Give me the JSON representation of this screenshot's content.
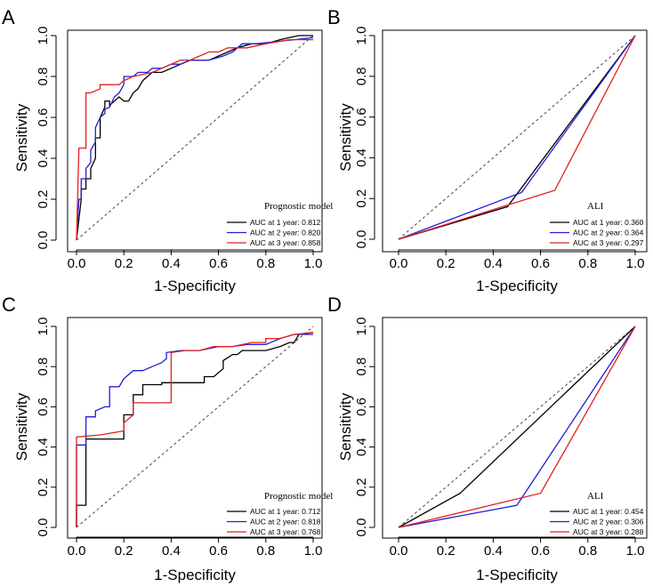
{
  "colors": {
    "black": "#000000",
    "blue": "#1f1fd6",
    "red": "#e02020"
  },
  "chart_data": [
    {
      "panel": "A",
      "type": "line",
      "xlabel": "1-Specificity",
      "ylabel": "Sensitivity",
      "xlim": [
        0,
        1
      ],
      "ylim": [
        0,
        1
      ],
      "xticks": [
        "0.0",
        "0.2",
        "0.4",
        "0.6",
        "0.8",
        "1.0"
      ],
      "yticks": [
        "0.0",
        "0.2",
        "0.4",
        "0.6",
        "0.8",
        "1.0"
      ],
      "legend_title": "Prognostic model",
      "legend_position": "bottom-right",
      "series": [
        {
          "name": "AUC at 1 year: 0.812",
          "color": "#000000",
          "x": [
            0,
            0.02,
            0.02,
            0.04,
            0.04,
            0.06,
            0.06,
            0.08,
            0.08,
            0.1,
            0.1,
            0.12,
            0.12,
            0.14,
            0.14,
            0.18,
            0.2,
            0.22,
            0.24,
            0.26,
            0.28,
            0.3,
            0.32,
            0.36,
            0.4,
            0.44,
            0.48,
            0.56,
            0.6,
            0.64,
            0.68,
            0.74,
            0.8,
            0.86,
            0.9,
            0.94,
            1.0
          ],
          "y": [
            0,
            0.2,
            0.25,
            0.25,
            0.3,
            0.3,
            0.35,
            0.4,
            0.5,
            0.5,
            0.6,
            0.65,
            0.68,
            0.68,
            0.66,
            0.7,
            0.68,
            0.68,
            0.72,
            0.74,
            0.78,
            0.8,
            0.82,
            0.82,
            0.84,
            0.86,
            0.88,
            0.88,
            0.9,
            0.92,
            0.94,
            0.96,
            0.96,
            0.98,
            0.99,
            1.0,
            1.0
          ]
        },
        {
          "name": "AUC at 2 year: 0.820",
          "color": "#1f1fd6",
          "x": [
            0,
            0.01,
            0.02,
            0.02,
            0.04,
            0.04,
            0.06,
            0.06,
            0.08,
            0.08,
            0.1,
            0.12,
            0.12,
            0.14,
            0.16,
            0.18,
            0.2,
            0.2,
            0.24,
            0.26,
            0.3,
            0.32,
            0.36,
            0.4,
            0.44,
            0.48,
            0.56,
            0.62,
            0.66,
            0.7,
            0.76,
            0.84,
            0.92,
            1.0
          ],
          "y": [
            0,
            0.2,
            0.2,
            0.3,
            0.3,
            0.35,
            0.38,
            0.44,
            0.48,
            0.55,
            0.6,
            0.62,
            0.64,
            0.65,
            0.7,
            0.72,
            0.76,
            0.8,
            0.8,
            0.82,
            0.82,
            0.84,
            0.84,
            0.86,
            0.86,
            0.88,
            0.88,
            0.9,
            0.92,
            0.96,
            0.96,
            0.97,
            0.98,
            0.99
          ]
        },
        {
          "name": "AUC at 3 year: 0.858",
          "color": "#e02020",
          "x": [
            0,
            0.01,
            0.01,
            0.04,
            0.04,
            0.06,
            0.1,
            0.1,
            0.18,
            0.2,
            0.24,
            0.32,
            0.36,
            0.4,
            0.44,
            0.48,
            0.52,
            0.56,
            0.6,
            0.64,
            0.72,
            0.8,
            0.9,
            1.0
          ],
          "y": [
            0,
            0.45,
            0.45,
            0.45,
            0.72,
            0.72,
            0.74,
            0.76,
            0.76,
            0.78,
            0.8,
            0.82,
            0.84,
            0.86,
            0.88,
            0.88,
            0.9,
            0.92,
            0.92,
            0.94,
            0.94,
            0.96,
            0.98,
            0.98
          ]
        }
      ]
    },
    {
      "panel": "B",
      "type": "line",
      "xlabel": "1-Specificity",
      "ylabel": "Sensitivity",
      "xlim": [
        0,
        1
      ],
      "ylim": [
        0,
        1
      ],
      "xticks": [
        "0.0",
        "0.2",
        "0.4",
        "0.6",
        "0.8",
        "1.0"
      ],
      "yticks": [
        "0.0",
        "0.2",
        "0.4",
        "0.6",
        "0.8",
        "1.0"
      ],
      "legend_title": "ALI",
      "legend_position": "bottom-right",
      "series": [
        {
          "name": "AUC at 1 year: 0.360",
          "color": "#000000",
          "x": [
            0,
            0.46,
            1.0
          ],
          "y": [
            0,
            0.16,
            1.0
          ]
        },
        {
          "name": "AUC at 2 year: 0.364",
          "color": "#1f1fd6",
          "x": [
            0,
            0.52,
            1.0
          ],
          "y": [
            0,
            0.23,
            1.0
          ]
        },
        {
          "name": "AUC at 3 year: 0.297",
          "color": "#e02020",
          "x": [
            0,
            0.66,
            1.0
          ],
          "y": [
            0,
            0.24,
            1.0
          ]
        }
      ]
    },
    {
      "panel": "C",
      "type": "line",
      "xlabel": "1-Specificity",
      "ylabel": "Sensitivity",
      "xlim": [
        0,
        1
      ],
      "ylim": [
        0,
        1
      ],
      "xticks": [
        "0.0",
        "0.2",
        "0.4",
        "0.6",
        "0.8",
        "1.0"
      ],
      "yticks": [
        "0.0",
        "0.2",
        "0.4",
        "0.6",
        "0.8",
        "1.0"
      ],
      "legend_title": "Prognostic model",
      "legend_position": "bottom-right",
      "series": [
        {
          "name": "AUC at 1 year: 0.712",
          "color": "#000000",
          "x": [
            0,
            0.0,
            0.04,
            0.04,
            0.2,
            0.2,
            0.24,
            0.24,
            0.28,
            0.28,
            0.36,
            0.36,
            0.54,
            0.54,
            0.58,
            0.62,
            0.62,
            0.66,
            0.68,
            0.7,
            0.8,
            0.86,
            0.9,
            0.92,
            0.94,
            1.0
          ],
          "y": [
            0,
            0.11,
            0.11,
            0.44,
            0.44,
            0.56,
            0.56,
            0.66,
            0.66,
            0.71,
            0.71,
            0.72,
            0.72,
            0.75,
            0.75,
            0.79,
            0.83,
            0.86,
            0.86,
            0.88,
            0.88,
            0.9,
            0.92,
            0.92,
            0.96,
            0.97
          ]
        },
        {
          "name": "AUC at 2 year: 0.818",
          "color": "#1f1fd6",
          "x": [
            0,
            0.0,
            0.04,
            0.04,
            0.08,
            0.08,
            0.12,
            0.14,
            0.14,
            0.18,
            0.2,
            0.24,
            0.28,
            0.32,
            0.36,
            0.38,
            0.38,
            0.44,
            0.52,
            0.6,
            0.66,
            0.72,
            0.8,
            0.86,
            0.92,
            1.0
          ],
          "y": [
            0,
            0.41,
            0.41,
            0.55,
            0.55,
            0.58,
            0.6,
            0.6,
            0.7,
            0.7,
            0.74,
            0.78,
            0.78,
            0.8,
            0.82,
            0.84,
            0.87,
            0.88,
            0.88,
            0.9,
            0.9,
            0.91,
            0.91,
            0.94,
            0.96,
            0.96
          ]
        },
        {
          "name": "AUC at 3 year: 0.768",
          "color": "#e02020",
          "x": [
            0,
            0.0,
            0.1,
            0.2,
            0.2,
            0.24,
            0.24,
            0.28,
            0.38,
            0.4,
            0.4,
            0.46,
            0.52,
            0.58,
            0.66,
            0.74,
            0.8,
            0.8,
            0.86,
            0.92,
            1.0
          ],
          "y": [
            0,
            0.45,
            0.46,
            0.48,
            0.52,
            0.56,
            0.62,
            0.62,
            0.62,
            0.62,
            0.87,
            0.88,
            0.88,
            0.9,
            0.9,
            0.92,
            0.92,
            0.94,
            0.94,
            0.96,
            0.97
          ]
        }
      ]
    },
    {
      "panel": "D",
      "type": "line",
      "xlabel": "1-Specificity",
      "ylabel": "Sensitivity",
      "xlim": [
        0,
        1
      ],
      "ylim": [
        0,
        1
      ],
      "xticks": [
        "0.0",
        "0.2",
        "0.4",
        "0.6",
        "0.8",
        "1.0"
      ],
      "yticks": [
        "0.0",
        "0.2",
        "0.4",
        "0.6",
        "0.8",
        "1.0"
      ],
      "legend_title": "ALI",
      "legend_position": "bottom-right",
      "series": [
        {
          "name": "AUC at 1 year: 0.454",
          "color": "#000000",
          "x": [
            0,
            0.26,
            1.0
          ],
          "y": [
            0,
            0.17,
            1.0
          ]
        },
        {
          "name": "AUC at 2 year: 0.306",
          "color": "#1f1fd6",
          "x": [
            0,
            0.5,
            1.0
          ],
          "y": [
            0,
            0.11,
            1.0
          ]
        },
        {
          "name": "AUC at 3 year: 0.288",
          "color": "#e02020",
          "x": [
            0,
            0.6,
            1.0
          ],
          "y": [
            0,
            0.17,
            1.0
          ]
        }
      ]
    }
  ]
}
